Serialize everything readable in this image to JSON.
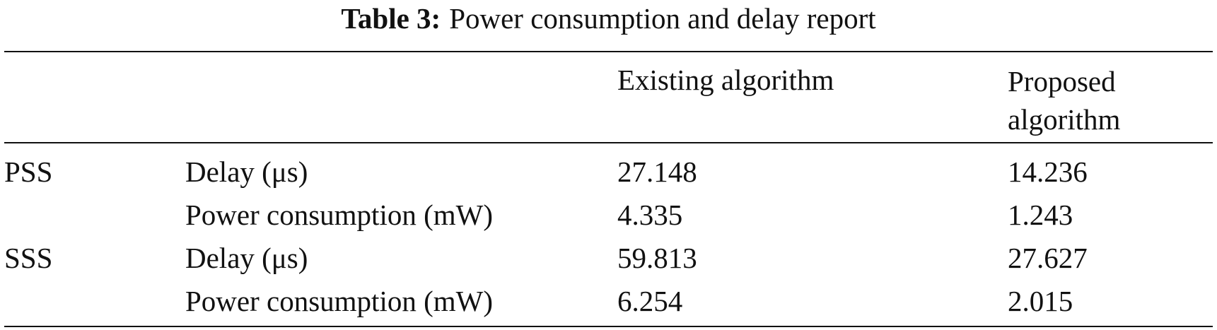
{
  "caption": {
    "label": "Table 3:",
    "title": "Power consumption and delay report"
  },
  "table": {
    "headers": [
      "",
      "",
      "Existing algorithm",
      "Proposed algorithm"
    ],
    "header_lines": {
      "proposed_line1": "Proposed",
      "proposed_line2": "algorithm"
    },
    "rows": [
      {
        "group": "PSS",
        "metric": "Delay (μs)",
        "existing": "27.148",
        "proposed": "14.236"
      },
      {
        "group": "",
        "metric": "Power consumption (mW)",
        "existing": "4.335",
        "proposed": "1.243"
      },
      {
        "group": "SSS",
        "metric": "Delay (μs)",
        "existing": "59.813",
        "proposed": "27.627"
      },
      {
        "group": "",
        "metric": "Power consumption (mW)",
        "existing": "6.254",
        "proposed": "2.015"
      }
    ]
  }
}
